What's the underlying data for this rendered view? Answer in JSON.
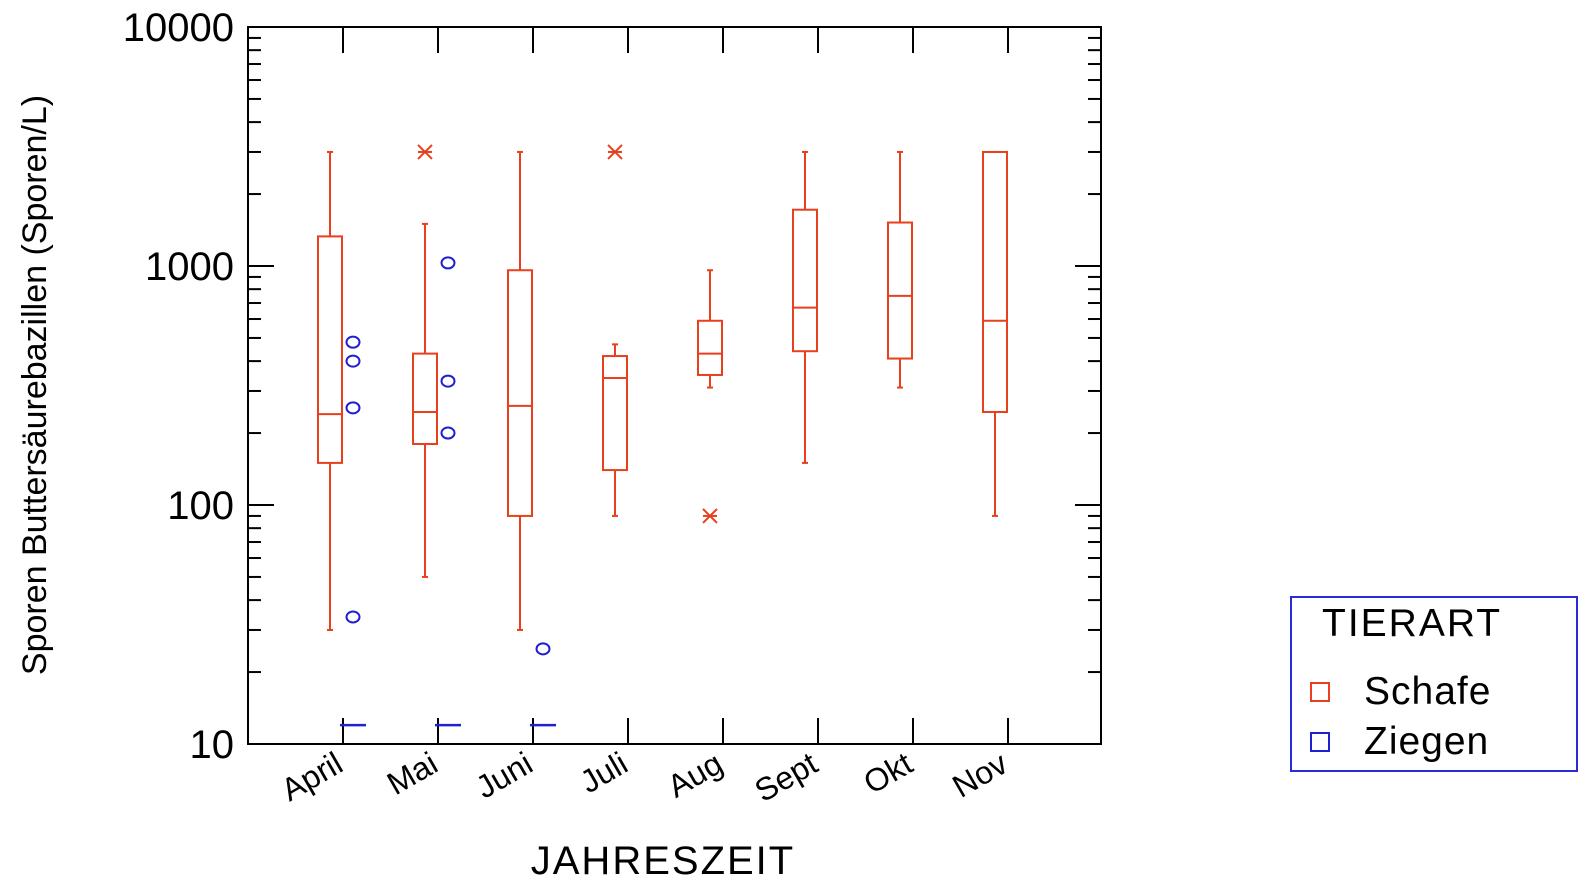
{
  "chart_data": {
    "type": "boxplot",
    "xlabel": "JAHRESZEIT",
    "ylabel": "Sporen Buttersäurebazillen (Sporen/L)",
    "yscale": "log",
    "ylim": [
      10,
      10000
    ],
    "yticks": [
      "10",
      "100",
      "1000",
      "10000"
    ],
    "categories": [
      "April",
      "Mai",
      "Juni",
      "Juli",
      "Aug",
      "Sept",
      "Okt",
      "Nov"
    ],
    "colors": {
      "Schafe": "#e8401c",
      "Ziegen": "#2020d0"
    },
    "legend": {
      "title": "TIERART",
      "position": "right",
      "items": [
        "Schafe",
        "Ziegen"
      ]
    },
    "series": [
      {
        "name": "Schafe",
        "boxes": [
          {
            "category": "April",
            "whisker_low": 30,
            "q1": 150,
            "median": 240,
            "q3": 1330,
            "whisker_high": 3000,
            "outliers": [],
            "far_outliers": []
          },
          {
            "category": "Mai",
            "whisker_low": 50,
            "q1": 180,
            "median": 245,
            "q3": 430,
            "whisker_high": 1500,
            "outliers": [],
            "far_outliers": [
              3000
            ]
          },
          {
            "category": "Juni",
            "whisker_low": 30,
            "q1": 90,
            "median": 260,
            "q3": 960,
            "whisker_high": 3000,
            "outliers": [],
            "far_outliers": []
          },
          {
            "category": "Juli",
            "whisker_low": 90,
            "q1": 140,
            "median": 340,
            "q3": 420,
            "whisker_high": 470,
            "outliers": [],
            "far_outliers": [
              3000
            ]
          },
          {
            "category": "Aug",
            "whisker_low": 310,
            "q1": 350,
            "median": 430,
            "q3": 590,
            "whisker_high": 960,
            "outliers": [],
            "far_outliers": [
              90
            ]
          },
          {
            "category": "Sept",
            "whisker_low": 150,
            "q1": 440,
            "median": 670,
            "q3": 1720,
            "whisker_high": 3000,
            "outliers": [],
            "far_outliers": []
          },
          {
            "category": "Okt",
            "whisker_low": 310,
            "q1": 410,
            "median": 750,
            "q3": 1520,
            "whisker_high": 3000,
            "outliers": [],
            "far_outliers": []
          },
          {
            "category": "Nov",
            "whisker_low": 90,
            "q1": 245,
            "median": 590,
            "q3": 3000,
            "whisker_high": 3000,
            "outliers": [],
            "far_outliers": []
          }
        ]
      },
      {
        "name": "Ziegen",
        "boxes": [
          {
            "category": "April",
            "median": 12,
            "outliers": [
              480,
              400,
              255,
              34
            ],
            "far_outliers": []
          },
          {
            "category": "Mai",
            "median": 12,
            "outliers": [
              1030,
              330,
              200
            ],
            "far_outliers": []
          },
          {
            "category": "Juni",
            "median": 12,
            "outliers": [
              25
            ],
            "far_outliers": []
          }
        ]
      }
    ]
  }
}
